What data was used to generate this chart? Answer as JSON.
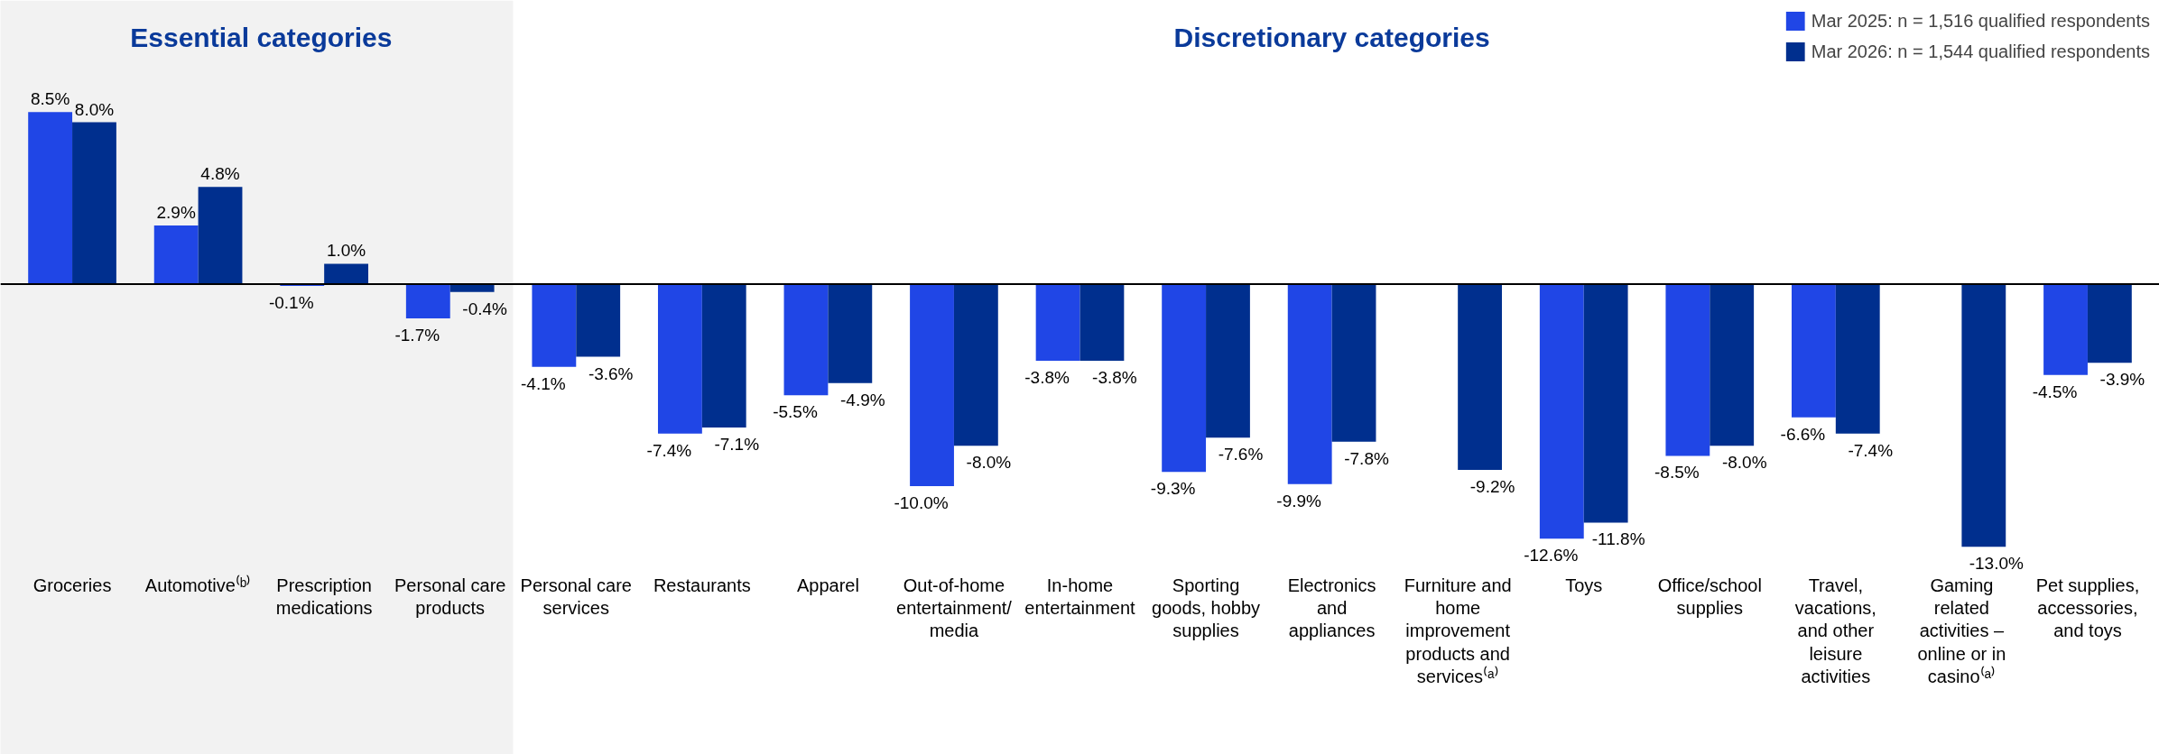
{
  "chart_data": {
    "type": "bar",
    "categories": [
      "Groceries",
      "Automotive⁽ᵇ⁾",
      "Prescription medications",
      "Personal care products",
      "Personal care services",
      "Restaurants",
      "Apparel",
      "Out-of-home entertainment/ media",
      "In-home entertainment",
      "Sporting goods, hobby supplies",
      "Electronics and appliances",
      "Furniture and home improvement products and services⁽ᵃ⁾",
      "Toys",
      "Office/school supplies",
      "Travel, vacations, and other leisure activities",
      "Gaming related activities – online or in casino⁽ᵃ⁾",
      "Pet supplies, accessories, and toys"
    ],
    "series": [
      {
        "name": "Mar 2025: n = 1,516 qualified respondents",
        "color": "#2046e6",
        "values": [
          8.5,
          2.9,
          -0.1,
          -1.7,
          -4.1,
          -7.4,
          -5.5,
          -10.0,
          -3.8,
          -9.3,
          -9.9,
          null,
          -12.6,
          -8.5,
          -6.6,
          null,
          -4.5
        ],
        "value_labels": [
          "8.5%",
          "2.9%",
          "-0.1%",
          "-1.7%",
          "-4.1%",
          "-7.4%",
          "-5.5%",
          "-10.0%",
          "-3.8%",
          "-9.3%",
          "-9.9%",
          null,
          "-12.6%",
          "-8.5%",
          "-6.6%",
          null,
          "-4.5%"
        ]
      },
      {
        "name": "Mar 2026: n = 1,544 qualified respondents",
        "color": "#002f8e",
        "values": [
          8.0,
          4.8,
          1.0,
          -0.4,
          -3.6,
          -7.1,
          -4.9,
          -8.0,
          -3.8,
          -7.6,
          -7.8,
          -9.2,
          -11.8,
          -8.0,
          -7.4,
          -13.0,
          -3.9
        ],
        "value_labels": [
          "8.0%",
          "4.8%",
          "1.0%",
          "-0.4%",
          "-3.6%",
          "-7.1%",
          "-4.9%",
          "-8.0%",
          "-3.8%",
          "-7.6%",
          "-7.8%",
          "-9.2%",
          "-11.8%",
          "-8.0%",
          "-7.4%",
          "-13.0%",
          "-3.9%"
        ]
      }
    ],
    "bands": [
      {
        "axis": "x",
        "from": "Groceries",
        "to": "Personal care products",
        "label": "Essential categories",
        "color": "#f2f2f2"
      }
    ],
    "annotations": [
      "Discretionary categories"
    ],
    "legend": "top right",
    "grid": false
  }
}
